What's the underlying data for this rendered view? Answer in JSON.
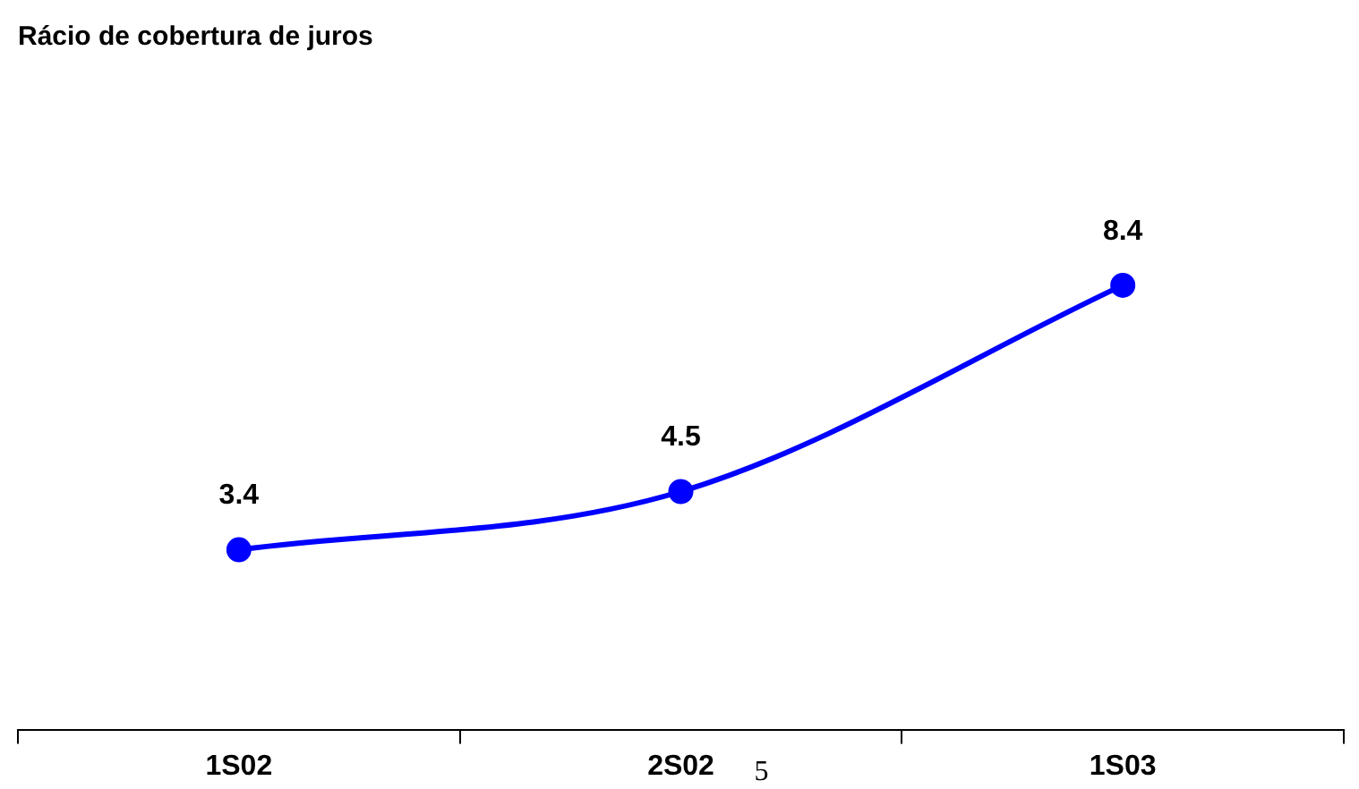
{
  "chart_data": {
    "type": "line",
    "title": "Rácio de cobertura de juros",
    "categories": [
      "1S02",
      "2S02",
      "1S03"
    ],
    "series": [
      {
        "color": "#0000ff",
        "values": [
          3.4,
          4.5,
          8.4
        ]
      }
    ],
    "tick_labels": "x",
    "data_labels": true,
    "marker": "circle",
    "line_style": "solid",
    "grid": false,
    "legend": false,
    "annotations": [
      "5"
    ]
  }
}
